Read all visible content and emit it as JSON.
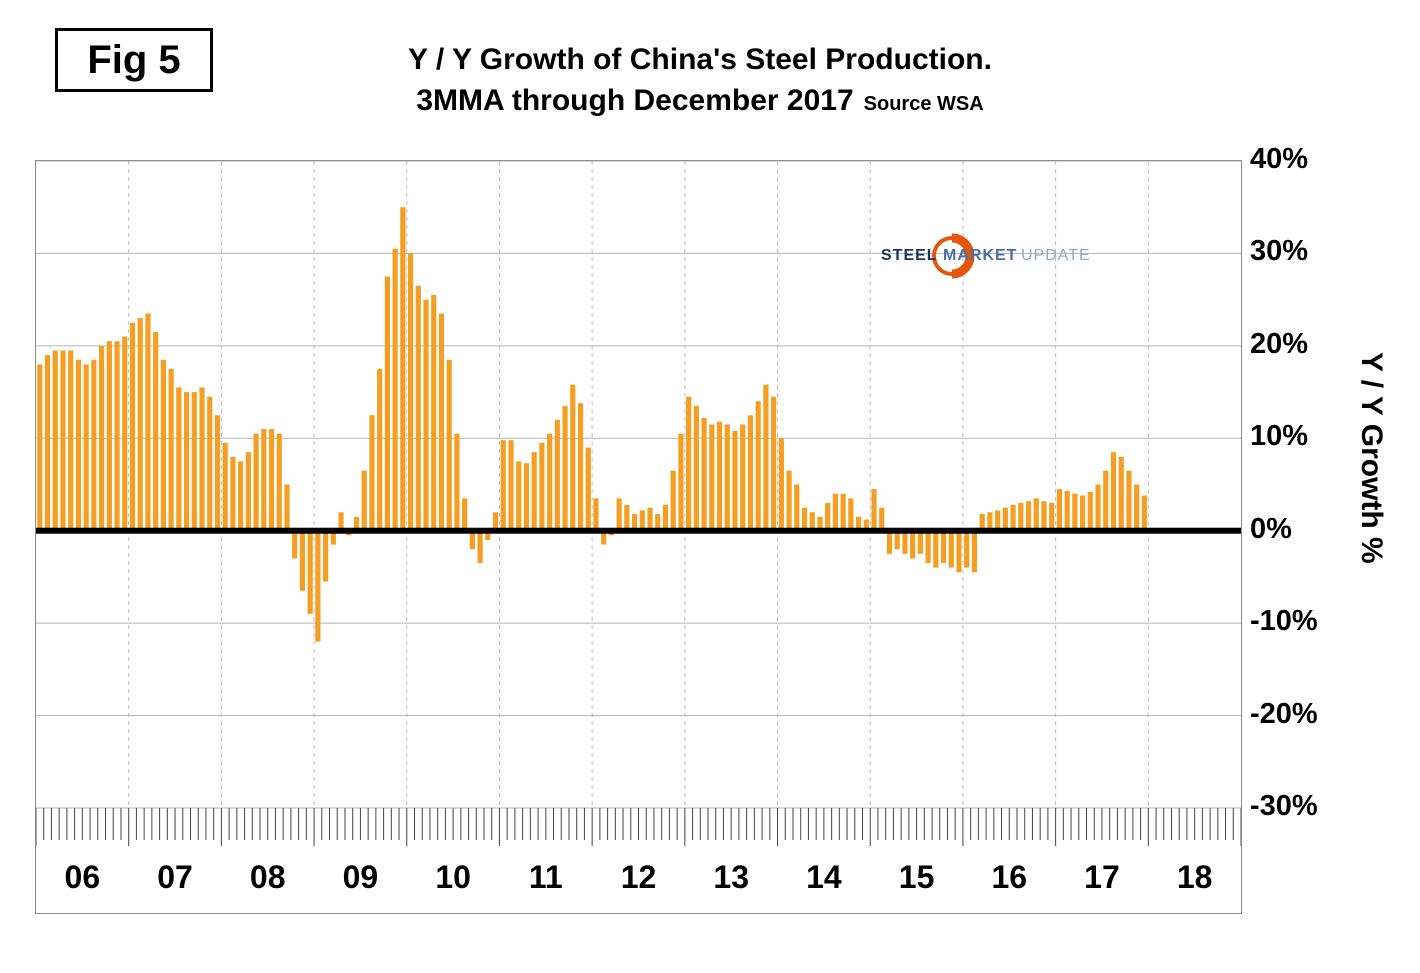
{
  "fig_label": "Fig 5",
  "title": {
    "line1": "Y / Y Growth of China's Steel Production.",
    "line2": "3MMA through December 2017",
    "source": "Source WSA"
  },
  "logo": {
    "steel": "STEEL",
    "market": "MARKET",
    "update": "UPDATE"
  },
  "chart_data": {
    "type": "bar",
    "title": "Y / Y Growth of China's Steel Production. 3MMA through December 2017",
    "ylabel": "Y / Y Growth %",
    "xlabel": "",
    "x_years": [
      "06",
      "07",
      "08",
      "09",
      "10",
      "11",
      "12",
      "13",
      "14",
      "15",
      "16",
      "17",
      "18"
    ],
    "start_month": "2006-01",
    "end_month": "2017-12",
    "ylim": [
      -30,
      40
    ],
    "yticks": [
      40,
      30,
      20,
      10,
      0,
      -10,
      -20,
      -30
    ],
    "grid": "horizontal solid + vertical dashed year separators",
    "legend": "none",
    "bar_color": "#F49F23",
    "zero_line_color": "#000000",
    "values": [
      18,
      19,
      19.5,
      19.5,
      19.5,
      18.5,
      18,
      18.5,
      20,
      20.5,
      20.5,
      21,
      22.5,
      23,
      23.5,
      21.5,
      18.5,
      17.5,
      15.5,
      15,
      15,
      15.5,
      14.5,
      12.5,
      9.5,
      8,
      7.5,
      8.5,
      10.5,
      11,
      11,
      10.5,
      5,
      -3,
      -6.5,
      -9,
      -12,
      -5.5,
      -1.5,
      2,
      -0.5,
      1.5,
      6.5,
      12.5,
      17.5,
      27.5,
      30.5,
      35,
      30,
      26.5,
      25,
      25.5,
      23.5,
      18.5,
      10.5,
      3.5,
      -2,
      -3.5,
      -1,
      2,
      9.8,
      9.8,
      7.5,
      7.3,
      8.5,
      9.5,
      10.5,
      12,
      13.5,
      15.8,
      13.8,
      9,
      3.5,
      -1.5,
      -0.5,
      3.5,
      2.8,
      1.8,
      2.2,
      2.5,
      1.8,
      2.8,
      6.5,
      10.5,
      14.5,
      13.5,
      12.2,
      11.5,
      11.8,
      11.5,
      10.8,
      11.5,
      12.5,
      14,
      15.8,
      14.5,
      10,
      6.5,
      5,
      2.5,
      2,
      1.5,
      3,
      4,
      4,
      3.5,
      1.5,
      1.2,
      4.5,
      2.5,
      -2.5,
      -2,
      -2.5,
      -3,
      -2.5,
      -3.5,
      -4,
      -3.5,
      -4,
      -4.5,
      -4,
      -4.5,
      1.8,
      2,
      2.2,
      2.5,
      2.8,
      3,
      3.2,
      3.5,
      3.2,
      3,
      4.5,
      4.3,
      4,
      3.8,
      4.2,
      5,
      6.5,
      8.5,
      8,
      6.5,
      5,
      3.8
    ]
  }
}
